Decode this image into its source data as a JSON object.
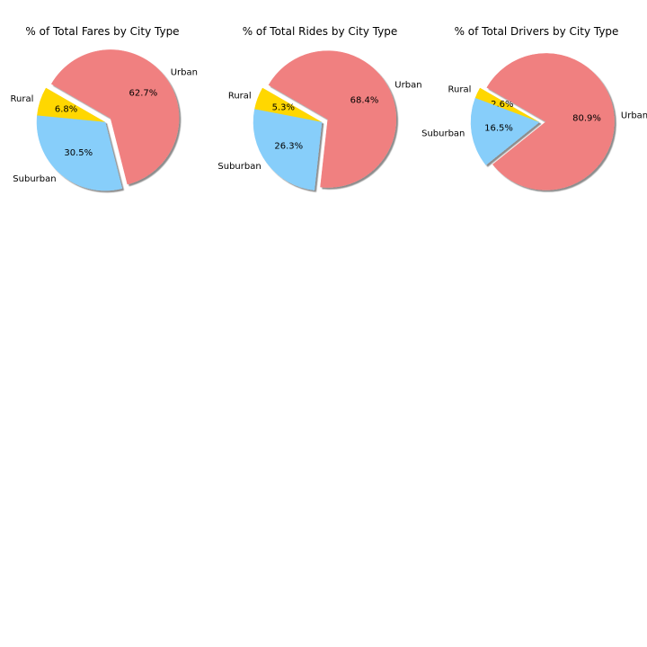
{
  "chart_data": [
    {
      "type": "pie",
      "title": "% of Total Fares by City Type",
      "labels": [
        "Rural",
        "Suburban",
        "Urban"
      ],
      "values": [
        6.8,
        30.5,
        62.7
      ],
      "value_labels": [
        "6.8%",
        "30.5%",
        "62.7%"
      ],
      "colors": [
        "#FFD700",
        "#87CEFA",
        "#F08080"
      ],
      "explode": [
        0,
        0,
        0.1
      ],
      "start_angle": 150,
      "shadow": true
    },
    {
      "type": "pie",
      "title": "% of Total Rides by City Type",
      "labels": [
        "Rural",
        "Suburban",
        "Urban"
      ],
      "values": [
        5.3,
        26.3,
        68.4
      ],
      "value_labels": [
        "5.3%",
        "26.3%",
        "68.4%"
      ],
      "colors": [
        "#FFD700",
        "#87CEFA",
        "#F08080"
      ],
      "explode": [
        0,
        0,
        0.1
      ],
      "start_angle": 150,
      "shadow": true
    },
    {
      "type": "pie",
      "title": "% of Total Drivers by City Type",
      "labels": [
        "Rural",
        "Suburban",
        "Urban"
      ],
      "values": [
        2.6,
        16.5,
        80.9
      ],
      "value_labels": [
        "2.6%",
        "16.5%",
        "80.9%"
      ],
      "colors": [
        "#FFD700",
        "#87CEFA",
        "#F08080"
      ],
      "explode": [
        0,
        0,
        0.1
      ],
      "start_angle": 150,
      "shadow": true
    }
  ]
}
